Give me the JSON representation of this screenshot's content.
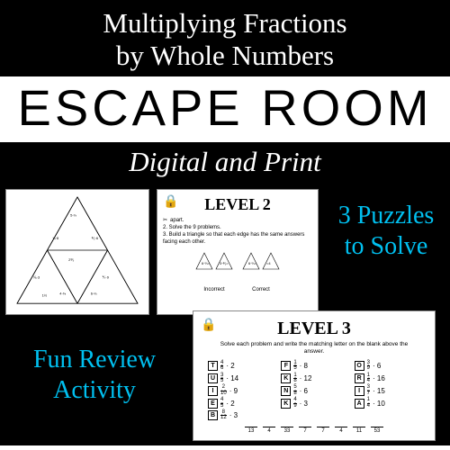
{
  "header": {
    "line1": "Multiplying Fractions",
    "line2": "by Whole Numbers"
  },
  "escape_banner": "ESCAPE ROOM",
  "digital_print": "Digital and Print",
  "puzzles_text": {
    "line1": "3 Puzzles",
    "line2": "to Solve"
  },
  "fun_review": {
    "line1": "Fun Review",
    "line2": "Activity"
  },
  "level2": {
    "title": "LEVEL 2",
    "step_cut": "apart.",
    "step2": "2. Solve the 9 problems.",
    "step3": "3. Build a triangle so that each edge has the same answers facing each other.",
    "incorrect": "Incorrect",
    "correct": "Correct"
  },
  "level3": {
    "title": "LEVEL 3",
    "instr": "Solve each problem and write the matching letter on the blank above the answer.",
    "items": [
      {
        "l": "T",
        "n": "4",
        "d": "6",
        "m": "2"
      },
      {
        "l": "F",
        "n": "1",
        "d": "5",
        "m": "8"
      },
      {
        "l": "O",
        "n": "3",
        "d": "9",
        "m": "6"
      },
      {
        "l": "U",
        "n": "3",
        "d": "5",
        "m": "14"
      },
      {
        "l": "K",
        "n": "1",
        "d": "8",
        "m": "12"
      },
      {
        "l": "R",
        "n": "1",
        "d": "4",
        "m": "16"
      },
      {
        "l": "I",
        "n": "2",
        "d": "10",
        "m": "9"
      },
      {
        "l": "N",
        "n": "5",
        "d": "8",
        "m": "6"
      },
      {
        "l": "I",
        "n": "3",
        "d": "7",
        "m": "15"
      },
      {
        "l": "E",
        "n": "4",
        "d": "5",
        "m": "2"
      },
      {
        "l": "K",
        "n": "4",
        "d": "9",
        "m": "3"
      },
      {
        "l": "A",
        "n": "1",
        "d": "4",
        "m": "10"
      },
      {
        "l": "B",
        "n": "8",
        "d": "12",
        "m": "3"
      }
    ],
    "blanks": [
      "13",
      "4",
      "33",
      "7",
      "7",
      "4",
      "11",
      "53"
    ]
  },
  "colors": {
    "bg": "#000000",
    "accent": "#00c0f0",
    "card": "#ffffff"
  }
}
